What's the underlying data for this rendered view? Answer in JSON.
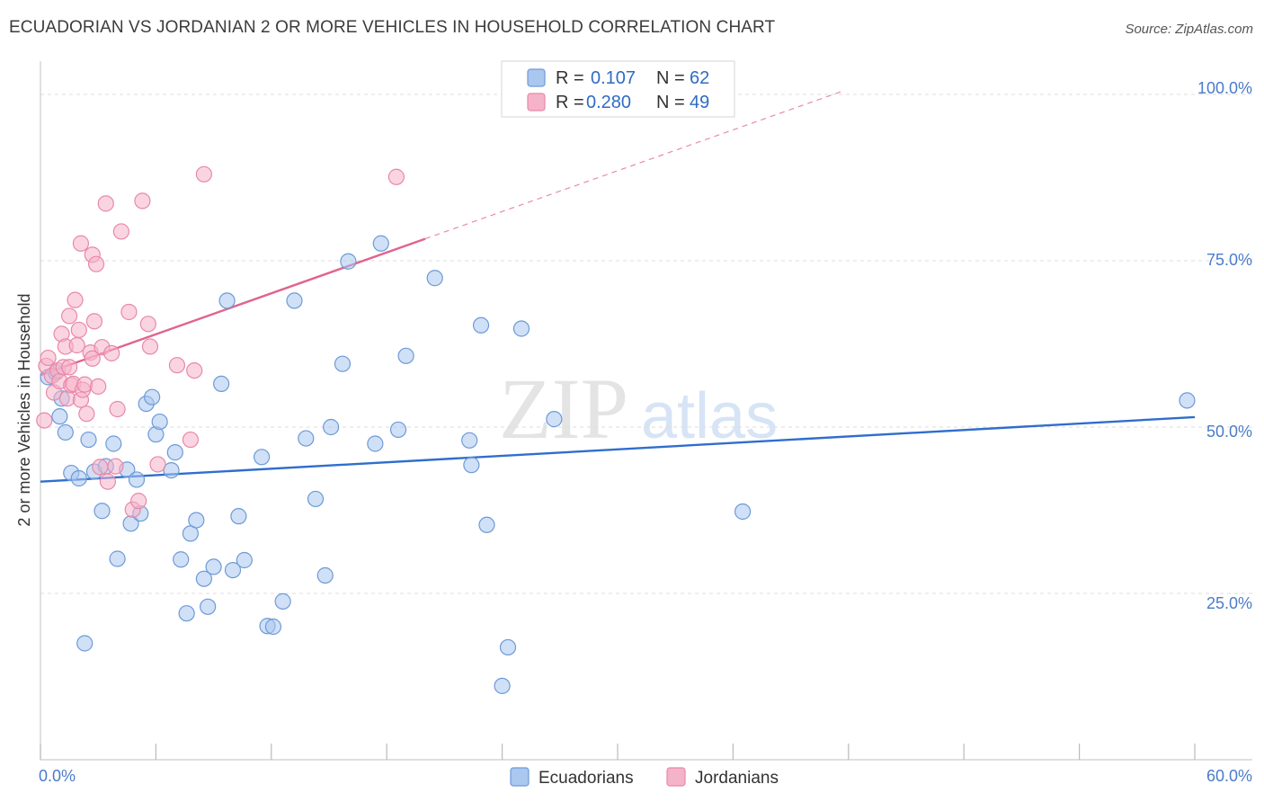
{
  "title": "ECUADORIAN VS JORDANIAN 2 OR MORE VEHICLES IN HOUSEHOLD CORRELATION CHART",
  "source": "Source: ZipAtlas.com",
  "watermark": {
    "zip": "ZIP",
    "atlas": "atlas"
  },
  "colors": {
    "blue_fill": "#a9c7ef",
    "blue_stroke": "#6d9ad8",
    "blue_line": "#2f6ecd",
    "pink_fill": "#f5b3c9",
    "pink_stroke": "#e888a8",
    "pink_line": "#e0648e",
    "axis_label": "#4a7cc9",
    "grid": "#dddddd"
  },
  "legend": {
    "r_label": "R =",
    "n_label": "N =",
    "rows": [
      {
        "series": "Ecuadorians",
        "r": "0.107",
        "n": "62"
      },
      {
        "series": "Jordanians",
        "r": "0.280",
        "n": "49"
      }
    ]
  },
  "chart_data": {
    "type": "scatter",
    "title": "ECUADORIAN VS JORDANIAN 2 OR MORE VEHICLES IN HOUSEHOLD CORRELATION CHART",
    "xlabel": "",
    "ylabel": "2 or more Vehicles in Household",
    "xlim": [
      0,
      60
    ],
    "ylim": [
      0,
      105
    ],
    "x_tick_labels": [
      "0.0%",
      "60.0%"
    ],
    "y_ticks": [
      25,
      50,
      75,
      100
    ],
    "y_tick_labels": [
      "25.0%",
      "50.0%",
      "75.0%",
      "100.0%"
    ],
    "grid": true,
    "series": [
      {
        "name": "Ecuadorians",
        "color": "blue",
        "points": [
          [
            0.4,
            57.5
          ],
          [
            0.8,
            58.2
          ],
          [
            1.0,
            51.6
          ],
          [
            1.1,
            54.3
          ],
          [
            1.3,
            49.2
          ],
          [
            1.6,
            43.1
          ],
          [
            2.0,
            42.3
          ],
          [
            2.3,
            17.5
          ],
          [
            2.5,
            48.1
          ],
          [
            2.8,
            43.3
          ],
          [
            3.2,
            37.4
          ],
          [
            3.4,
            44.1
          ],
          [
            3.8,
            47.5
          ],
          [
            4.0,
            30.2
          ],
          [
            4.5,
            43.6
          ],
          [
            4.7,
            35.5
          ],
          [
            5.0,
            42.1
          ],
          [
            5.2,
            37.0
          ],
          [
            5.5,
            53.5
          ],
          [
            5.8,
            54.5
          ],
          [
            6.0,
            48.9
          ],
          [
            6.2,
            50.8
          ],
          [
            6.8,
            43.5
          ],
          [
            7.0,
            46.2
          ],
          [
            7.3,
            30.1
          ],
          [
            7.6,
            22.0
          ],
          [
            7.8,
            34.0
          ],
          [
            8.1,
            36.0
          ],
          [
            8.5,
            27.2
          ],
          [
            8.7,
            23.0
          ],
          [
            9.0,
            29.0
          ],
          [
            9.4,
            56.5
          ],
          [
            9.7,
            69.0
          ],
          [
            10.0,
            28.5
          ],
          [
            10.3,
            36.6
          ],
          [
            10.6,
            30.0
          ],
          [
            11.5,
            45.5
          ],
          [
            11.8,
            20.1
          ],
          [
            12.1,
            20.0
          ],
          [
            12.6,
            23.8
          ],
          [
            13.2,
            69.0
          ],
          [
            13.8,
            48.3
          ],
          [
            14.3,
            39.2
          ],
          [
            14.8,
            27.7
          ],
          [
            15.1,
            50.0
          ],
          [
            15.7,
            59.5
          ],
          [
            16.0,
            74.9
          ],
          [
            17.4,
            47.5
          ],
          [
            17.7,
            77.6
          ],
          [
            18.6,
            49.6
          ],
          [
            19.0,
            60.7
          ],
          [
            20.5,
            72.4
          ],
          [
            22.3,
            48.0
          ],
          [
            22.4,
            44.3
          ],
          [
            22.9,
            65.3
          ],
          [
            23.2,
            35.3
          ],
          [
            24.3,
            16.9
          ],
          [
            24.0,
            11.1
          ],
          [
            25.0,
            64.8
          ],
          [
            26.7,
            51.2
          ],
          [
            36.5,
            37.3
          ],
          [
            59.6,
            54.0
          ]
        ]
      },
      {
        "name": "Jordanians",
        "color": "pink",
        "points": [
          [
            0.2,
            51.0
          ],
          [
            0.3,
            59.2
          ],
          [
            0.4,
            60.4
          ],
          [
            0.6,
            57.7
          ],
          [
            0.7,
            55.2
          ],
          [
            0.9,
            58.5
          ],
          [
            1.0,
            56.9
          ],
          [
            1.1,
            64.0
          ],
          [
            1.2,
            59.0
          ],
          [
            1.3,
            62.1
          ],
          [
            1.4,
            54.3
          ],
          [
            1.5,
            66.7
          ],
          [
            1.6,
            56.3
          ],
          [
            1.7,
            56.5
          ],
          [
            1.8,
            69.1
          ],
          [
            1.9,
            62.3
          ],
          [
            2.0,
            64.6
          ],
          [
            2.1,
            77.6
          ],
          [
            2.1,
            54.1
          ],
          [
            2.2,
            55.6
          ],
          [
            2.3,
            56.4
          ],
          [
            2.4,
            52.0
          ],
          [
            2.6,
            61.2
          ],
          [
            2.7,
            60.3
          ],
          [
            2.7,
            75.9
          ],
          [
            2.8,
            65.9
          ],
          [
            2.9,
            74.5
          ],
          [
            3.0,
            56.1
          ],
          [
            3.2,
            62.0
          ],
          [
            3.4,
            83.6
          ],
          [
            3.5,
            41.8
          ],
          [
            3.7,
            61.1
          ],
          [
            3.9,
            44.1
          ],
          [
            4.0,
            52.7
          ],
          [
            4.2,
            79.4
          ],
          [
            4.6,
            67.3
          ],
          [
            4.8,
            37.6
          ],
          [
            5.1,
            38.9
          ],
          [
            5.3,
            84.0
          ],
          [
            5.6,
            65.5
          ],
          [
            5.7,
            62.1
          ],
          [
            6.1,
            44.4
          ],
          [
            7.1,
            59.3
          ],
          [
            7.8,
            48.1
          ],
          [
            8.0,
            58.5
          ],
          [
            8.5,
            88.0
          ],
          [
            18.5,
            87.6
          ],
          [
            3.1,
            44.0
          ],
          [
            1.5,
            59.0
          ]
        ]
      }
    ],
    "trend_lines": [
      {
        "series": "Ecuadorians",
        "x": [
          0,
          60
        ],
        "y": [
          41.8,
          51.5
        ],
        "style": "solid"
      },
      {
        "series": "Jordanians",
        "x": [
          0,
          20
        ],
        "y": [
          57.8,
          78.3
        ],
        "style": "solid"
      },
      {
        "series": "Jordanians",
        "x": [
          20,
          41.8
        ],
        "y": [
          78.3,
          100.6
        ],
        "style": "dashed"
      }
    ]
  }
}
